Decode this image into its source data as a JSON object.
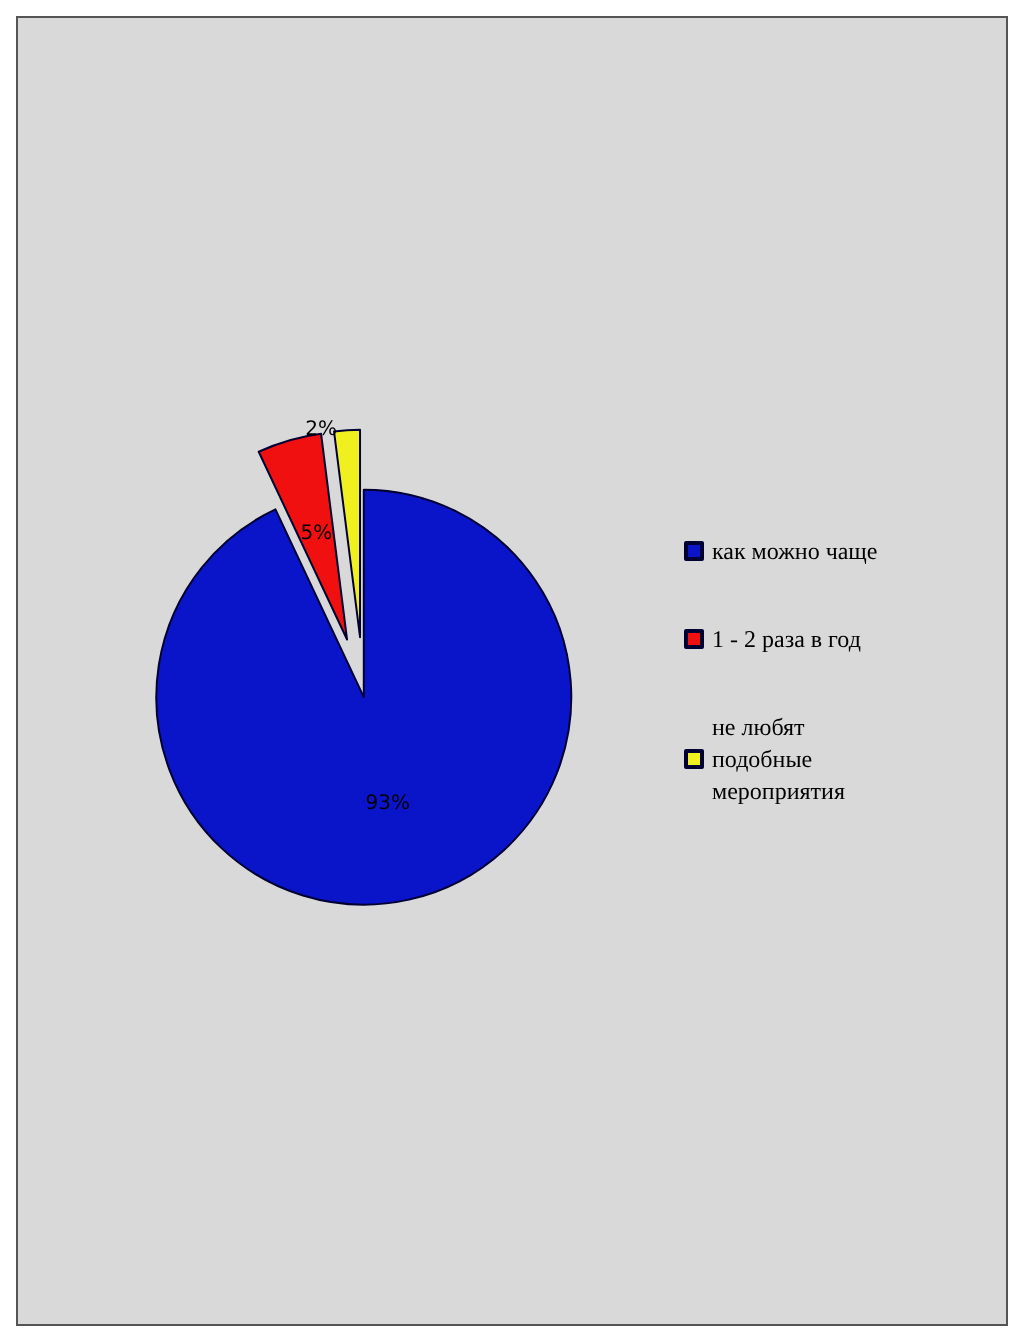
{
  "chart_data": {
    "type": "pie",
    "categories": [
      "как можно чаще",
      "1 - 2 раза в год",
      "не любят подобные мероприятия"
    ],
    "values": [
      93,
      5,
      2
    ],
    "colors": [
      "#0a14c8",
      "#f01010",
      "#f0f020"
    ],
    "value_labels": [
      "93%",
      "5%",
      "2%"
    ],
    "legend": "right"
  }
}
